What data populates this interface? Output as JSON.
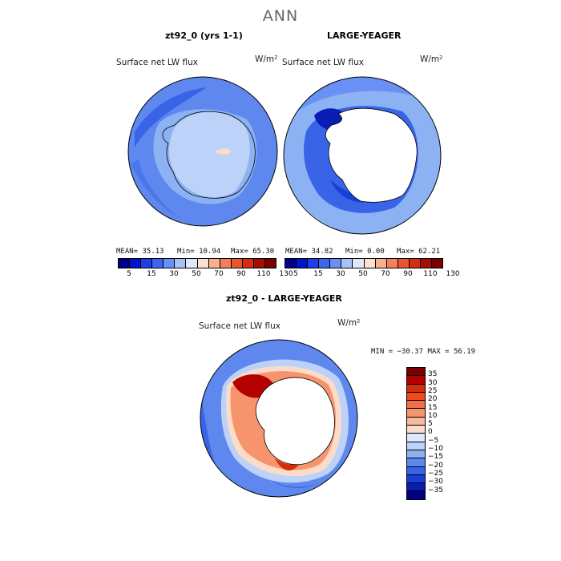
{
  "page": {
    "title": "ANN"
  },
  "panels": {
    "left": {
      "title": "zt92_0 (yrs 1-1)",
      "variable": "Surface net LW flux",
      "units": "W/m²",
      "stats": {
        "mean": "MEAN=  35.13",
        "min": "Min=  10.94",
        "max": "Max=  65.30"
      }
    },
    "right": {
      "title": "LARGE-YEAGER",
      "variable": "Surface net LW flux",
      "units": "W/m²",
      "stats": {
        "mean": "MEAN=  34.82",
        "min": "Min=   0.00",
        "max": "Max=  62.21"
      }
    },
    "diff": {
      "title": "zt92_0 - LARGE-YEAGER",
      "variable": "Surface net LW flux",
      "units": "W/m²",
      "stats": "MIN = −30.37 MAX =  56.19"
    }
  },
  "colorbar_top": {
    "colors": [
      "#00008b",
      "#0014cc",
      "#1f3fe6",
      "#3a66f0",
      "#6890f5",
      "#a8c2f8",
      "#dde8fb",
      "#fde0cf",
      "#f8b08e",
      "#f2805c",
      "#e8562f",
      "#d42d10",
      "#a80d05",
      "#7a0000"
    ],
    "labels": [
      "5",
      "15",
      "30",
      "50",
      "70",
      "90",
      "110",
      "130"
    ]
  },
  "colorbar_diff": {
    "colors": [
      "#7a0000",
      "#b50000",
      "#d82a0c",
      "#ee4a1c",
      "#f36e44",
      "#f6946d",
      "#f9b99c",
      "#fcdcc9",
      "#dde8fb",
      "#bcd2f8",
      "#8cb2f4",
      "#5f88ef",
      "#3964e8",
      "#1a3ed9",
      "#0a1cb6",
      "#000080"
    ],
    "labels": [
      "35",
      "30",
      "25",
      "20",
      "15",
      "10",
      "5",
      "0",
      "−5",
      "−10",
      "−15",
      "−20",
      "−25",
      "−30",
      "−35"
    ]
  }
}
